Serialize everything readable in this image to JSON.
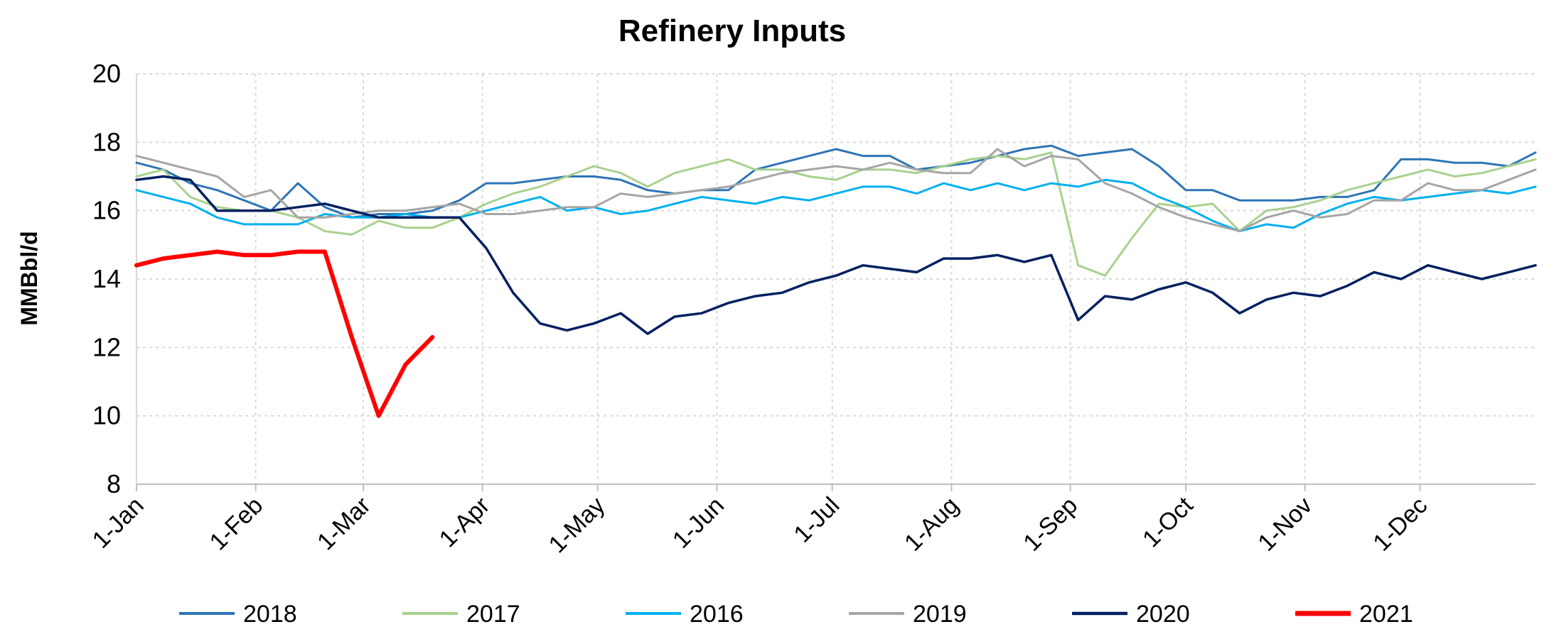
{
  "chart_data": {
    "type": "line",
    "title": "Refinery Inputs",
    "xlabel": "",
    "ylabel": "MMBbl/d",
    "ylim": [
      8,
      20
    ],
    "yticks": [
      8,
      10,
      12,
      14,
      16,
      18,
      20
    ],
    "xlim": [
      0,
      52
    ],
    "xtick_positions": [
      0,
      4.43,
      8.43,
      12.86,
      17.14,
      21.57,
      25.86,
      30.29,
      34.71,
      39,
      43.43,
      47.71
    ],
    "xtick_labels": [
      "1-Jan",
      "1-Feb",
      "1-Mar",
      "1-Apr",
      "1-May",
      "1-Jun",
      "1-Jul",
      "1-Aug",
      "1-Sep",
      "1-Oct",
      "1-Nov",
      "1-Dec"
    ],
    "grid": true,
    "legend_position": "bottom",
    "series": [
      {
        "name": "2018",
        "color": "#2E75B6",
        "width": 3,
        "values": [
          17.4,
          17.2,
          16.8,
          16.6,
          16.3,
          16.0,
          16.8,
          16.1,
          15.8,
          15.9,
          15.9,
          16.0,
          16.3,
          16.8,
          16.8,
          16.9,
          17.0,
          17.0,
          16.9,
          16.6,
          16.5,
          16.6,
          16.6,
          17.2,
          17.4,
          17.6,
          17.8,
          17.6,
          17.6,
          17.2,
          17.3,
          17.4,
          17.6,
          17.8,
          17.9,
          17.6,
          17.7,
          17.8,
          17.3,
          16.6,
          16.6,
          16.3,
          16.3,
          16.3,
          16.4,
          16.4,
          16.6,
          17.5,
          17.5,
          17.4,
          17.4,
          17.3,
          17.7
        ]
      },
      {
        "name": "2017",
        "color": "#A9D18E",
        "width": 3,
        "values": [
          17.0,
          17.2,
          16.4,
          16.1,
          16.0,
          16.0,
          15.8,
          15.4,
          15.3,
          15.7,
          15.5,
          15.5,
          15.8,
          16.2,
          16.5,
          16.7,
          17.0,
          17.3,
          17.1,
          16.7,
          17.1,
          17.3,
          17.5,
          17.2,
          17.2,
          17.0,
          16.9,
          17.2,
          17.2,
          17.1,
          17.3,
          17.5,
          17.6,
          17.5,
          17.7,
          14.4,
          14.1,
          15.2,
          16.2,
          16.1,
          16.2,
          15.4,
          16.0,
          16.1,
          16.3,
          16.6,
          16.8,
          17.0,
          17.2,
          17.0,
          17.1,
          17.3,
          17.5
        ]
      },
      {
        "name": "2016",
        "color": "#00B0F0",
        "width": 3,
        "values": [
          16.6,
          16.4,
          16.2,
          15.8,
          15.6,
          15.6,
          15.6,
          15.9,
          15.8,
          15.8,
          15.9,
          15.8,
          15.8,
          16.0,
          16.2,
          16.4,
          16.0,
          16.1,
          15.9,
          16.0,
          16.2,
          16.4,
          16.3,
          16.2,
          16.4,
          16.3,
          16.5,
          16.7,
          16.7,
          16.5,
          16.8,
          16.6,
          16.8,
          16.6,
          16.8,
          16.7,
          16.9,
          16.8,
          16.4,
          16.1,
          15.7,
          15.4,
          15.6,
          15.5,
          15.9,
          16.2,
          16.4,
          16.3,
          16.4,
          16.5,
          16.6,
          16.5,
          16.7
        ]
      },
      {
        "name": "2019",
        "color": "#A5A5A5",
        "width": 3,
        "values": [
          17.6,
          17.4,
          17.2,
          17.0,
          16.4,
          16.6,
          15.8,
          15.8,
          15.9,
          16.0,
          16.0,
          16.1,
          16.2,
          15.9,
          15.9,
          16.0,
          16.1,
          16.1,
          16.5,
          16.4,
          16.5,
          16.6,
          16.7,
          16.9,
          17.1,
          17.2,
          17.3,
          17.2,
          17.4,
          17.2,
          17.1,
          17.1,
          17.8,
          17.3,
          17.6,
          17.5,
          16.8,
          16.5,
          16.1,
          15.8,
          15.6,
          15.4,
          15.8,
          16.0,
          15.8,
          15.9,
          16.3,
          16.3,
          16.8,
          16.6,
          16.6,
          16.9,
          17.2
        ]
      },
      {
        "name": "2020",
        "color": "#002060",
        "width": 3.5,
        "values": [
          16.9,
          17.0,
          16.9,
          16.0,
          16.0,
          16.0,
          16.1,
          16.2,
          16.0,
          15.8,
          15.8,
          15.8,
          15.8,
          14.9,
          13.6,
          12.7,
          12.5,
          12.7,
          13.0,
          12.4,
          12.9,
          13.0,
          13.3,
          13.5,
          13.6,
          13.9,
          14.1,
          14.4,
          14.3,
          14.2,
          14.6,
          14.6,
          14.7,
          14.5,
          14.7,
          12.8,
          13.5,
          13.4,
          13.7,
          13.9,
          13.6,
          13.0,
          13.4,
          13.6,
          13.5,
          13.8,
          14.2,
          14.0,
          14.4,
          14.2,
          14.0,
          14.2,
          14.4
        ]
      },
      {
        "name": "2021",
        "color": "#FF0000",
        "width": 6,
        "values": [
          14.4,
          14.6,
          14.7,
          14.8,
          14.7,
          14.7,
          14.8,
          14.8,
          12.3,
          10.0,
          11.5,
          12.3
        ]
      }
    ]
  }
}
